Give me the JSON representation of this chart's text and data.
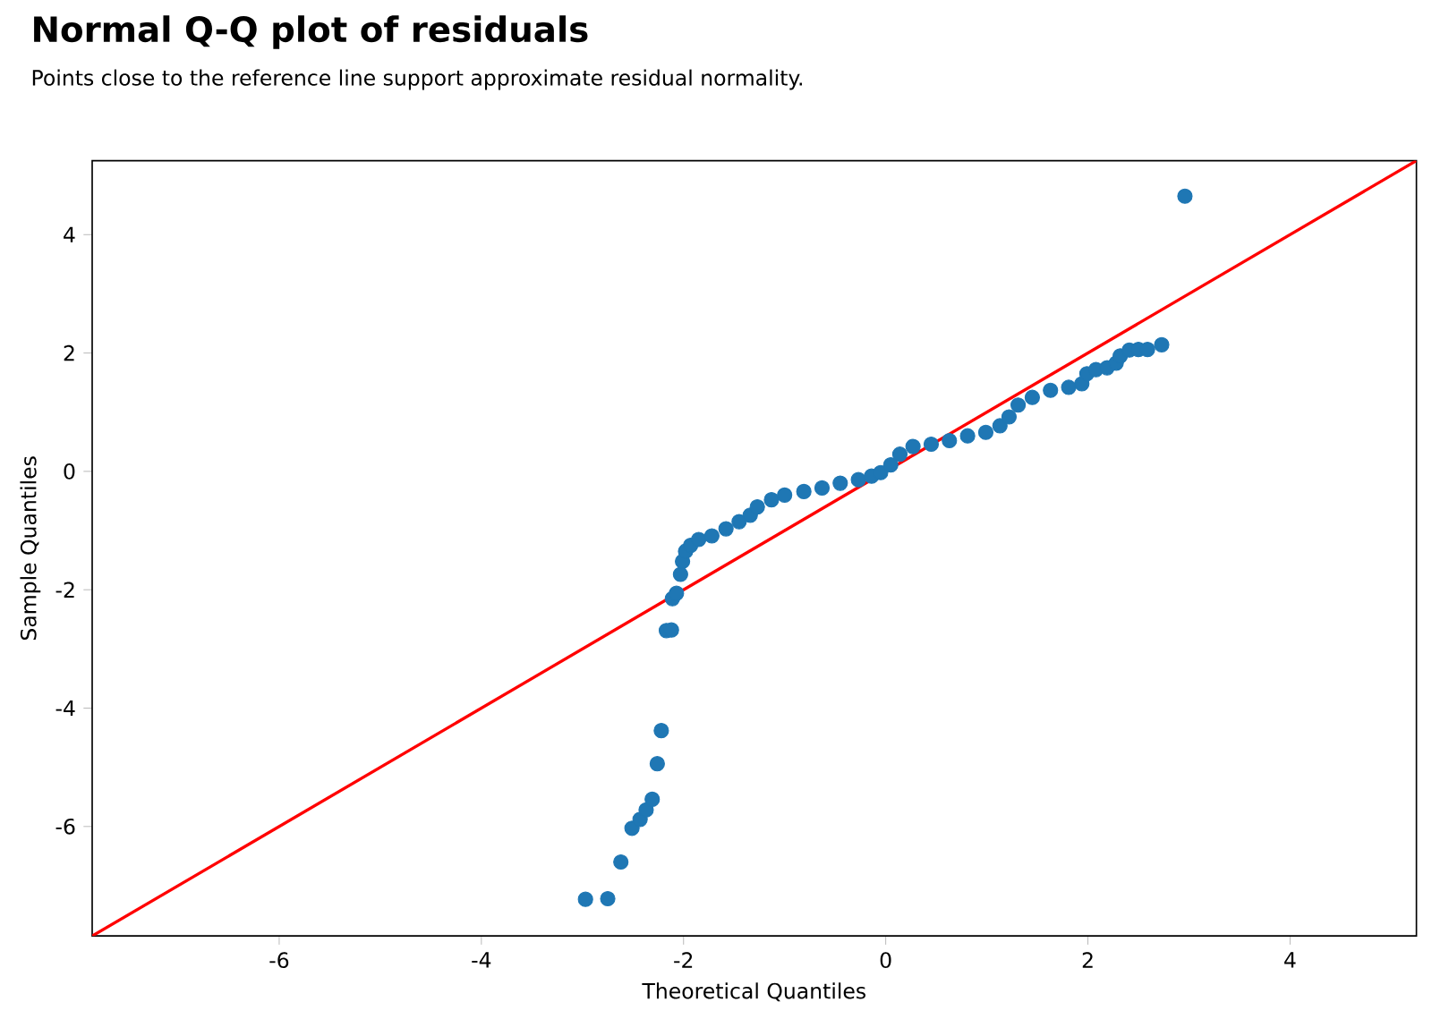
{
  "chart_data": {
    "type": "scatter",
    "title": "Normal Q-Q plot of residuals",
    "subtitle": "Points close to the reference line support approximate residual normality.",
    "xlabel": "Theoretical Quantiles",
    "ylabel": "Sample Quantiles",
    "xlim": [
      -7.85,
      5.25
    ],
    "ylim": [
      -7.85,
      5.25
    ],
    "xticks": [
      -6,
      -4,
      -2,
      0,
      2,
      4
    ],
    "yticks": [
      -6,
      -4,
      -2,
      0,
      2,
      4
    ],
    "series": [
      {
        "color": "#1f77b4",
        "marker": "circle",
        "x": [
          -2.97,
          -2.75,
          -2.62,
          -2.51,
          -2.43,
          -2.37,
          -2.31,
          -2.26,
          -2.22,
          -2.17,
          -2.12,
          -2.11,
          -2.07,
          -2.03,
          -2.01,
          -1.98,
          -1.93,
          -1.85,
          -1.72,
          -1.58,
          -1.45,
          -1.34,
          -1.27,
          -1.13,
          -1.0,
          -0.81,
          -0.63,
          -0.45,
          -0.27,
          -0.14,
          -0.05,
          0.05,
          0.14,
          0.27,
          0.45,
          0.63,
          0.81,
          0.99,
          1.13,
          1.22,
          1.31,
          1.45,
          1.63,
          1.81,
          1.94,
          1.99,
          2.08,
          2.19,
          2.28,
          2.32,
          2.41,
          2.5,
          2.59,
          2.73,
          2.96
        ],
        "values": [
          -7.23,
          -7.22,
          -6.6,
          -6.03,
          -5.88,
          -5.72,
          -5.54,
          -4.94,
          -4.38,
          -2.69,
          -2.68,
          -2.15,
          -2.06,
          -1.74,
          -1.52,
          -1.35,
          -1.25,
          -1.15,
          -1.09,
          -0.97,
          -0.85,
          -0.74,
          -0.6,
          -0.48,
          -0.4,
          -0.34,
          -0.28,
          -0.2,
          -0.14,
          -0.08,
          -0.02,
          0.11,
          0.29,
          0.42,
          0.46,
          0.52,
          0.6,
          0.66,
          0.77,
          0.92,
          1.12,
          1.25,
          1.37,
          1.42,
          1.48,
          1.65,
          1.72,
          1.75,
          1.83,
          1.95,
          2.05,
          2.06,
          2.06,
          2.14,
          4.65
        ]
      },
      {
        "type": "line",
        "color": "#ff0000",
        "marker": "none",
        "x": [
          -7.85,
          5.25
        ],
        "values": [
          -7.85,
          5.25
        ]
      }
    ]
  }
}
